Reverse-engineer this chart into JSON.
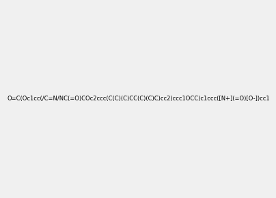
{
  "smiles": "O=C(Oc1cc(/C=N/NC(=O)COc2ccc(C(C)(C)CC(C)(C)C)cc2)ccc1OCC)c1ccc([N+](=O)[O-])cc1",
  "image_size": 300,
  "background_color": "#f0f0f0"
}
